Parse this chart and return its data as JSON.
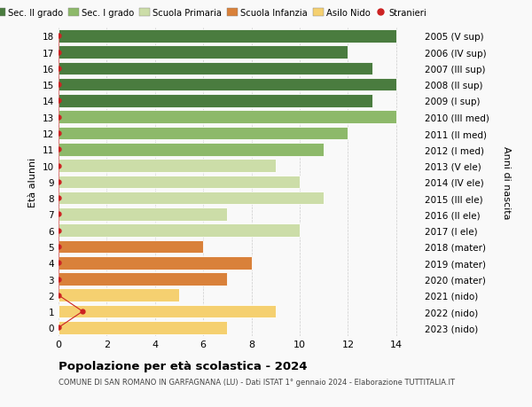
{
  "ages": [
    0,
    1,
    2,
    3,
    4,
    5,
    6,
    7,
    8,
    9,
    10,
    11,
    12,
    13,
    14,
    15,
    16,
    17,
    18
  ],
  "right_labels": [
    "2023 (nido)",
    "2022 (nido)",
    "2021 (nido)",
    "2020 (mater)",
    "2019 (mater)",
    "2018 (mater)",
    "2017 (I ele)",
    "2016 (II ele)",
    "2015 (III ele)",
    "2014 (IV ele)",
    "2013 (V ele)",
    "2012 (I med)",
    "2011 (II med)",
    "2010 (III med)",
    "2009 (I sup)",
    "2008 (II sup)",
    "2007 (III sup)",
    "2006 (IV sup)",
    "2005 (V sup)"
  ],
  "values": [
    7,
    9,
    5,
    7,
    8,
    6,
    10,
    7,
    11,
    10,
    9,
    11,
    12,
    14,
    13,
    14,
    13,
    12,
    14
  ],
  "colors": [
    "#f5d070",
    "#f5d070",
    "#f5d070",
    "#d9813a",
    "#d9813a",
    "#d9813a",
    "#ccdda8",
    "#ccdda8",
    "#ccdda8",
    "#ccdda8",
    "#ccdda8",
    "#8db96a",
    "#8db96a",
    "#8db96a",
    "#4a7c3f",
    "#4a7c3f",
    "#4a7c3f",
    "#4a7c3f",
    "#4a7c3f"
  ],
  "stranieri_ages": [
    0,
    1,
    2,
    3,
    4,
    5,
    6,
    7,
    8,
    9,
    10,
    11,
    12,
    13,
    14,
    15,
    16,
    17,
    18
  ],
  "stranieri_x": [
    0,
    1,
    0,
    0,
    0,
    0,
    0,
    0,
    0,
    0,
    0,
    0,
    0,
    0,
    0,
    0,
    0,
    0,
    0
  ],
  "stranieri_color": "#cc2222",
  "legend_items": [
    {
      "label": "Sec. II grado",
      "color": "#4a7c3f"
    },
    {
      "label": "Sec. I grado",
      "color": "#8db96a"
    },
    {
      "label": "Scuola Primaria",
      "color": "#ccdda8"
    },
    {
      "label": "Scuola Infanzia",
      "color": "#d9813a"
    },
    {
      "label": "Asilo Nido",
      "color": "#f5d070"
    },
    {
      "label": "Stranieri",
      "color": "#cc2222"
    }
  ],
  "ylabel": "Età alunni",
  "right_ylabel": "Anni di nascita",
  "title": "Popolazione per età scolastica - 2024",
  "subtitle": "COMUNE DI SAN ROMANO IN GARFAGNANA (LU) - Dati ISTAT 1° gennaio 2024 - Elaborazione TUTTITALIA.IT",
  "xlim": [
    0,
    15
  ],
  "ylim": [
    -0.5,
    18.5
  ],
  "xticks": [
    0,
    2,
    4,
    6,
    8,
    10,
    12,
    14
  ],
  "bg_color": "#f9f9f9",
  "grid_color": "#cccccc",
  "bar_height": 0.8
}
